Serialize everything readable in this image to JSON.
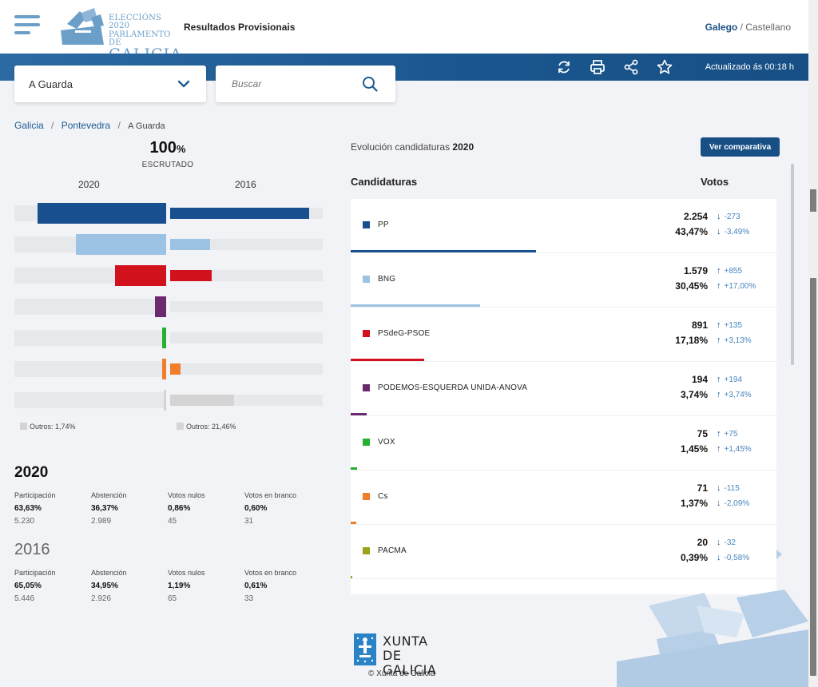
{
  "header": {
    "logo": {
      "line1": "ELECCIÓNS 2020",
      "line2": "PARLAMENTO DE",
      "line3": "GALICIA"
    },
    "title": "Resultados Provisionais",
    "lang_active": "Galego",
    "lang_sep": "/",
    "lang_other": "Castellano"
  },
  "toolbar": {
    "icons": [
      "refresh-icon",
      "print-icon",
      "share-icon",
      "star-icon"
    ],
    "updated": "Actualizado ás 00:18 h"
  },
  "selector": {
    "value": "A Guarda"
  },
  "search": {
    "placeholder": "Buscar"
  },
  "breadcrumb": {
    "items": [
      "Galicia",
      "Pontevedra"
    ],
    "current": "A Guarda",
    "sep": "/"
  },
  "scrutiny": {
    "value": "100",
    "unit": "%",
    "label": "ESCRUTADO"
  },
  "comparison": {
    "year_left": "2020",
    "year_right": "2016",
    "outros_left": "Outros: 1,74%",
    "outros_right": "Outros: 21,46%"
  },
  "chart_data": {
    "type": "bar",
    "categories": [
      "PP",
      "BNG",
      "PSdeG-PSOE",
      "PODEMOS-ESQUERDA UNIDA-ANOVA",
      "VOX",
      "Cs",
      "Outros"
    ],
    "series": [
      {
        "name": "2020",
        "values": [
          43.47,
          30.45,
          17.18,
          3.74,
          1.45,
          1.37,
          1.74
        ]
      },
      {
        "name": "2016",
        "values": [
          46.96,
          13.45,
          14.05,
          0,
          0,
          3.46,
          21.46
        ]
      }
    ],
    "colors": [
      "#174f8f",
      "#9cc3e4",
      "#d1121d",
      "#6b2a6e",
      "#23b02f",
      "#f07e2a",
      "#d4d4d4"
    ],
    "ylim": [
      0,
      100
    ]
  },
  "stats": [
    {
      "year": "2020",
      "items": [
        {
          "label": "Participación",
          "pct": "63,63%",
          "num": "5.230"
        },
        {
          "label": "Abstención",
          "pct": "36,37%",
          "num": "2.989"
        },
        {
          "label": "Votos nulos",
          "pct": "0,86%",
          "num": "45"
        },
        {
          "label": "Votos en branco",
          "pct": "0,60%",
          "num": "31"
        }
      ]
    },
    {
      "year": "2016",
      "items": [
        {
          "label": "Participación",
          "pct": "65,05%",
          "num": "5.446"
        },
        {
          "label": "Abstención",
          "pct": "34,95%",
          "num": "2.926"
        },
        {
          "label": "Votos nulos",
          "pct": "1,19%",
          "num": "65"
        },
        {
          "label": "Votos en branco",
          "pct": "0,61%",
          "num": "33"
        }
      ]
    }
  ],
  "evolution": {
    "title_prefix": "Evolución candidaturas",
    "title_year": "2020",
    "compare_button": "Ver comparativa",
    "col_candidates": "Candidaturas",
    "col_votes": "Votos"
  },
  "candidates": [
    {
      "name": "PP",
      "color": "#174f8f",
      "votes": "2.254",
      "pct": "43,47%",
      "dv_dir": "down",
      "dv": "-273",
      "dp_dir": "down",
      "dp": "-3,49%",
      "share": 43.47
    },
    {
      "name": "BNG",
      "color": "#9cc3e4",
      "votes": "1.579",
      "pct": "30,45%",
      "dv_dir": "up",
      "dv": "+855",
      "dp_dir": "up",
      "dp": "+17,00%",
      "share": 30.45
    },
    {
      "name": "PSdeG-PSOE",
      "color": "#d1121d",
      "votes": "891",
      "pct": "17,18%",
      "dv_dir": "up",
      "dv": "+135",
      "dp_dir": "up",
      "dp": "+3,13%",
      "share": 17.18
    },
    {
      "name": "PODEMOS-ESQUERDA UNIDA-ANOVA",
      "color": "#6b2a6e",
      "votes": "194",
      "pct": "3,74%",
      "dv_dir": "up",
      "dv": "+194",
      "dp_dir": "up",
      "dp": "+3,74%",
      "share": 3.74
    },
    {
      "name": "VOX",
      "color": "#23b02f",
      "votes": "75",
      "pct": "1,45%",
      "dv_dir": "up",
      "dv": "+75",
      "dp_dir": "up",
      "dp": "+1,45%",
      "share": 1.45
    },
    {
      "name": "Cs",
      "color": "#f07e2a",
      "votes": "71",
      "pct": "1,37%",
      "dv_dir": "down",
      "dv": "-115",
      "dp_dir": "down",
      "dp": "-2,09%",
      "share": 1.37
    },
    {
      "name": "PACMA",
      "color": "#9aa21a",
      "votes": "20",
      "pct": "0,39%",
      "dv_dir": "down",
      "dv": "-32",
      "dp_dir": "down",
      "dp": "-0,58%",
      "share": 0.39
    }
  ],
  "footer": {
    "logo_line1": "XUNTA",
    "logo_line2": "DE GALICIA",
    "copyright": "Xunta de Galicia"
  }
}
